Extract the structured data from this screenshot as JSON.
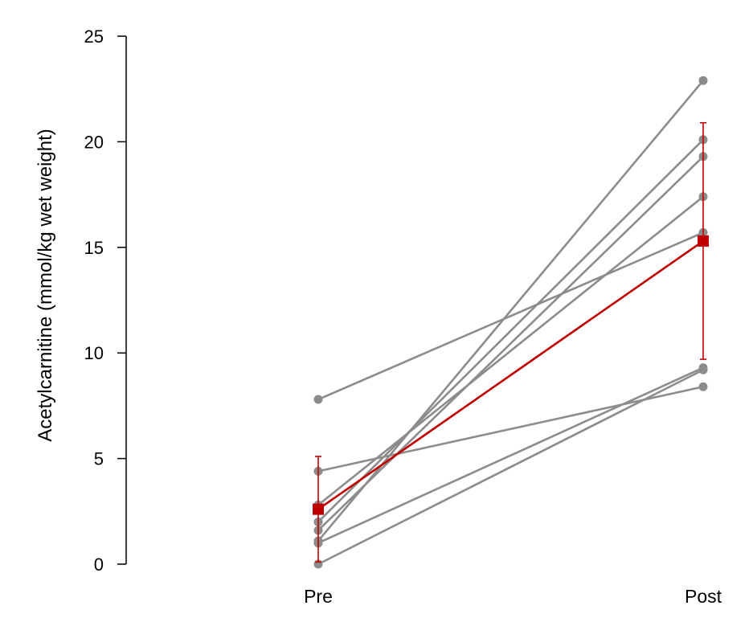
{
  "chart_data": {
    "type": "line",
    "title": "",
    "xlabel": "",
    "ylabel": "Acetylcarnitine (mmol/kg wet weight)",
    "categories": [
      "Pre",
      "Post"
    ],
    "ylim": [
      0,
      25
    ],
    "yticks": [
      0,
      5,
      10,
      15,
      20,
      25
    ],
    "grid": false,
    "legend": "none",
    "individual_color": "#8c8c8c",
    "mean_color": "#c00000",
    "individuals": [
      {
        "values": [
          7.8,
          15.7
        ]
      },
      {
        "values": [
          4.4,
          8.4
        ]
      },
      {
        "values": [
          2.8,
          17.4
        ]
      },
      {
        "values": [
          2.0,
          20.1
        ]
      },
      {
        "values": [
          1.6,
          19.3
        ]
      },
      {
        "values": [
          1.1,
          22.9
        ]
      },
      {
        "values": [
          1.0,
          9.3
        ]
      },
      {
        "values": [
          0.0,
          9.2
        ]
      }
    ],
    "mean": {
      "values": [
        2.6,
        15.3
      ],
      "error_upper": [
        5.1,
        20.9
      ],
      "error_lower": [
        0.1,
        9.7
      ]
    }
  }
}
